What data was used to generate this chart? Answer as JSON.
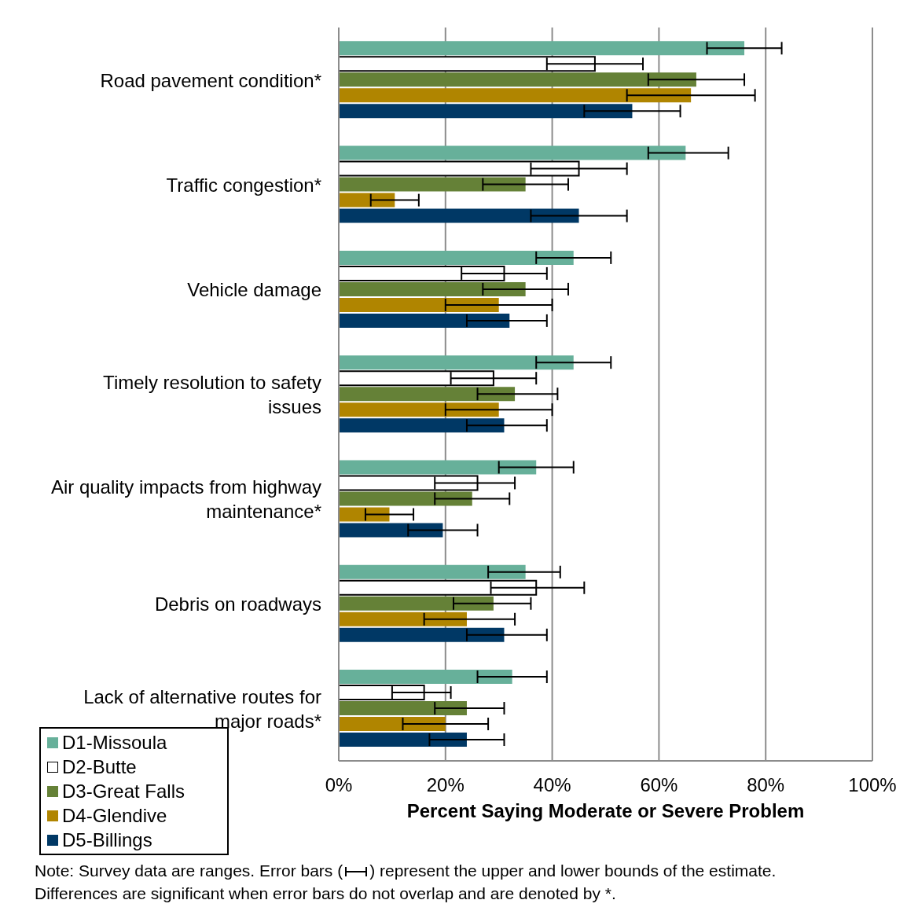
{
  "chart_data": {
    "type": "bar",
    "orientation": "horizontal",
    "xlabel": "Percent Saying Moderate or Severe Problem",
    "categories": [
      "Road pavement condition*",
      "Traffic congestion*",
      "Vehicle damage",
      "Timely resolution to safety issues",
      "Air quality impacts from highway maintenance*",
      "Debris on roadways",
      "Lack of alternative routes for major roads*"
    ],
    "series": [
      {
        "name": "D1-Missoula",
        "color": "#67b09a",
        "values": [
          76,
          65,
          44,
          44,
          37,
          35,
          32.5
        ],
        "errors": [
          [
            69,
            83
          ],
          [
            58,
            73
          ],
          [
            37,
            51
          ],
          [
            37,
            51
          ],
          [
            30,
            44
          ],
          [
            28,
            41.5
          ],
          [
            26,
            39
          ]
        ]
      },
      {
        "name": "D2-Butte",
        "color": "#ffffff",
        "values": [
          48,
          45,
          31,
          29,
          26,
          37,
          16
        ],
        "errors": [
          [
            39,
            57
          ],
          [
            36,
            54
          ],
          [
            23,
            39
          ],
          [
            21,
            37
          ],
          [
            18,
            33
          ],
          [
            28.5,
            46
          ],
          [
            10,
            21
          ]
        ]
      },
      {
        "name": "D3-Great Falls",
        "color": "#658137",
        "values": [
          67,
          35,
          35,
          33,
          25,
          29,
          24
        ],
        "errors": [
          [
            58,
            76
          ],
          [
            27,
            43
          ],
          [
            27,
            43
          ],
          [
            26,
            41
          ],
          [
            18,
            32
          ],
          [
            21.5,
            36
          ],
          [
            18,
            31
          ]
        ]
      },
      {
        "name": "D4-Glendive",
        "color": "#b08500",
        "values": [
          66,
          10.5,
          30,
          30,
          9.5,
          24,
          20
        ],
        "errors": [
          [
            54,
            78
          ],
          [
            6,
            15
          ],
          [
            20,
            40
          ],
          [
            20,
            40
          ],
          [
            5,
            14
          ],
          [
            16,
            33
          ],
          [
            12,
            28
          ]
        ]
      },
      {
        "name": "D5-Billings",
        "color": "#003865",
        "values": [
          55,
          45,
          32,
          31,
          19.5,
          31,
          24
        ],
        "errors": [
          [
            46,
            64
          ],
          [
            36,
            54
          ],
          [
            24,
            39
          ],
          [
            24,
            39
          ],
          [
            13,
            26
          ],
          [
            24,
            39
          ],
          [
            17,
            31
          ]
        ]
      }
    ],
    "xlim": [
      0,
      100
    ],
    "xticks": [
      {
        "value": 0,
        "label": "0%"
      },
      {
        "value": 20,
        "label": "20%"
      },
      {
        "value": 40,
        "label": "40%"
      },
      {
        "value": 60,
        "label": "60%"
      },
      {
        "value": 80,
        "label": "80%"
      },
      {
        "value": 100,
        "label": "100%"
      }
    ],
    "grid": "x",
    "legend": "bottom left",
    "annotations": [
      "Note: Survey data are ranges. Error bars (",
      ") represent the upper and lower bounds of the estimate. Differences are significant when error bars do not overlap and are denoted by *."
    ]
  }
}
